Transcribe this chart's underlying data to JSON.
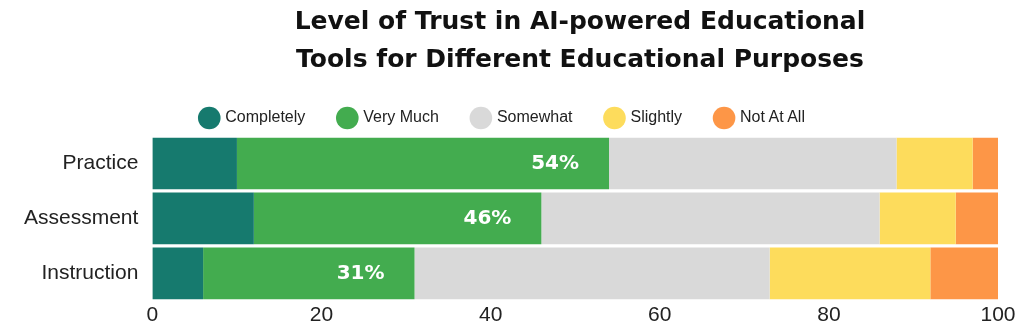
{
  "chart_data": {
    "type": "bar",
    "orientation": "horizontal",
    "stacked": true,
    "title": "Level of Trust in AI-powered Educational Tools for Different Educational Purposes",
    "categories": [
      "Practice",
      "Assessment",
      "Instruction"
    ],
    "series": [
      {
        "name": "Completely",
        "color": "#167a6e",
        "values": [
          10,
          12,
          6
        ]
      },
      {
        "name": "Very Much",
        "color": "#43ac4f",
        "values": [
          44,
          34,
          25
        ]
      },
      {
        "name": "Somewhat",
        "color": "#d9d9d9",
        "values": [
          34,
          40,
          42
        ]
      },
      {
        "name": "Slightly",
        "color": "#fddc5c",
        "values": [
          9,
          9,
          19
        ]
      },
      {
        "name": "Not At All",
        "color": "#fd9647",
        "values": [
          3,
          5,
          8
        ]
      }
    ],
    "xlim": [
      0,
      100
    ],
    "xticks": [
      0,
      20,
      40,
      60,
      80,
      100
    ],
    "grid": false,
    "legend": "top",
    "annotations": [
      {
        "text": "54%",
        "x": 54,
        "y": "Practice"
      },
      {
        "text": "46%",
        "x": 46,
        "y": "Assessment"
      },
      {
        "text": "31%",
        "x": 31,
        "y": "Instruction"
      }
    ]
  }
}
